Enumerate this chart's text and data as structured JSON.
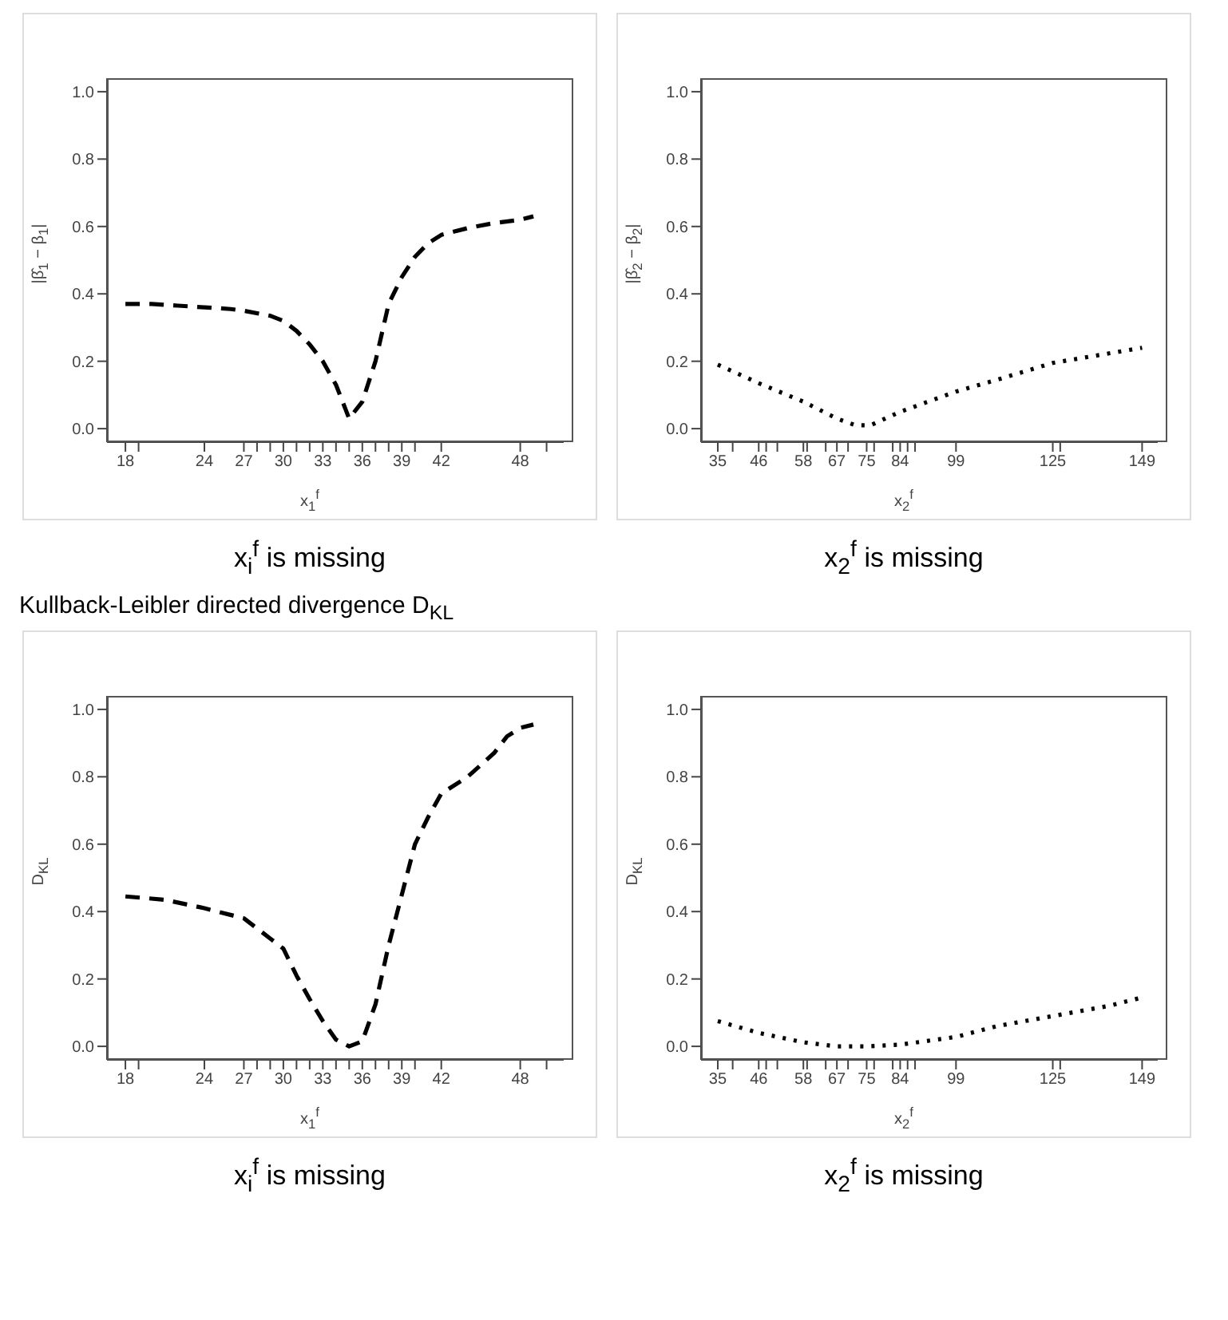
{
  "chart_data": [
    {
      "type": "line",
      "xlabel": "x$_{1}$$^{f}$",
      "ylabel": "|β̂$_{1}$ − β$_{1}$|",
      "annotations": [
        "x$_{i}$$^{f}$ is missing"
      ],
      "line_style": "dashed",
      "marker": "none",
      "series": [
        {
          "color": "#000000",
          "x": [
            18,
            20,
            22,
            24,
            26,
            27,
            29,
            30,
            31,
            32,
            33,
            34,
            35,
            36,
            37,
            38,
            39,
            40,
            41,
            42,
            44,
            46,
            48,
            49
          ],
          "values": [
            0.37,
            0.37,
            0.365,
            0.36,
            0.355,
            0.35,
            0.335,
            0.32,
            0.29,
            0.25,
            0.2,
            0.13,
            0.03,
            0.08,
            0.2,
            0.37,
            0.45,
            0.51,
            0.55,
            0.575,
            0.595,
            0.61,
            0.62,
            0.63
          ]
        }
      ],
      "xlim": [
        16.6,
        51.3
      ],
      "xticks": [
        18,
        {
          "value": 19,
          "label": null
        },
        24,
        27,
        {
          "value": 28,
          "label": null
        },
        {
          "value": 29,
          "label": null
        },
        30,
        {
          "value": 31,
          "label": null
        },
        {
          "value": 32,
          "label": null
        },
        33,
        {
          "value": 34,
          "label": null
        },
        {
          "value": 35,
          "label": null
        },
        36,
        {
          "value": 37,
          "label": null
        },
        {
          "value": 38,
          "label": null
        },
        39,
        {
          "value": 40,
          "label": null
        },
        42,
        48,
        {
          "value": 50,
          "label": null
        }
      ],
      "ylim": [
        -0.04,
        1.04
      ],
      "yticks": [
        {
          "value": 0,
          "label": "0.0"
        },
        {
          "value": 0.2,
          "label": "0.2"
        },
        {
          "value": 0.4,
          "label": "0.4"
        },
        {
          "value": 0.6,
          "label": "0.6"
        },
        {
          "value": 0.8,
          "label": "0.8"
        },
        {
          "value": 1,
          "label": "1.0"
        }
      ]
    },
    {
      "type": "line",
      "xlabel": "x$_{2}$$^{f}$",
      "ylabel": "|β̂$_{2}$ − β$_{2}$|",
      "annotations": [
        "x$_{2}$$^{f}$ is missing"
      ],
      "line_style": "dotted",
      "marker": "none",
      "series": [
        {
          "color": "#000000",
          "x": [
            35,
            46,
            58,
            67,
            72,
            76,
            84,
            99,
            110,
            125,
            149
          ],
          "values": [
            0.19,
            0.135,
            0.08,
            0.03,
            0.01,
            0.01,
            0.05,
            0.11,
            0.145,
            0.195,
            0.24
          ]
        }
      ],
      "xlim": [
        30.5,
        153.2
      ],
      "xticks": [
        35,
        {
          "value": 39,
          "label": null
        },
        46,
        {
          "value": 48,
          "label": null
        },
        {
          "value": 51,
          "label": null
        },
        58,
        {
          "value": 59,
          "label": null
        },
        {
          "value": 64,
          "label": null
        },
        67,
        {
          "value": 70,
          "label": null
        },
        75,
        {
          "value": 77,
          "label": null
        },
        {
          "value": 82,
          "label": null
        },
        84,
        {
          "value": 86,
          "label": null
        },
        {
          "value": 88,
          "label": null
        },
        99,
        125,
        {
          "value": 127,
          "label": null
        },
        149
      ],
      "ylim": [
        -0.04,
        1.04
      ],
      "yticks": [
        {
          "value": 0,
          "label": "0.0"
        },
        {
          "value": 0.2,
          "label": "0.2"
        },
        {
          "value": 0.4,
          "label": "0.4"
        },
        {
          "value": 0.6,
          "label": "0.6"
        },
        {
          "value": 0.8,
          "label": "0.8"
        },
        {
          "value": 1,
          "label": "1.0"
        }
      ]
    },
    {
      "type": "line",
      "title": "Kullback-Leibler directed divergence D$_{KL}$",
      "xlabel": "x$_{1}$$^{f}$",
      "ylabel": "D$_{KL}$",
      "annotations": [
        "x$_{i}$$^{f}$ is missing"
      ],
      "line_style": "dashed",
      "marker": "none",
      "series": [
        {
          "color": "#000000",
          "x": [
            18,
            21,
            24,
            27,
            29,
            30,
            31,
            32,
            33,
            34,
            35,
            36,
            37,
            38,
            39,
            40,
            41,
            42,
            44,
            46,
            47,
            48,
            49
          ],
          "values": [
            0.445,
            0.435,
            0.41,
            0.38,
            0.32,
            0.29,
            0.21,
            0.14,
            0.075,
            0.02,
            0,
            0.015,
            0.125,
            0.3,
            0.45,
            0.6,
            0.68,
            0.75,
            0.8,
            0.87,
            0.92,
            0.945,
            0.955
          ]
        }
      ],
      "xlim": [
        16.6,
        51.3
      ],
      "xticks": [
        18,
        {
          "value": 19,
          "label": null
        },
        24,
        27,
        {
          "value": 28,
          "label": null
        },
        {
          "value": 29,
          "label": null
        },
        30,
        {
          "value": 31,
          "label": null
        },
        {
          "value": 32,
          "label": null
        },
        33,
        {
          "value": 34,
          "label": null
        },
        {
          "value": 35,
          "label": null
        },
        36,
        {
          "value": 37,
          "label": null
        },
        {
          "value": 38,
          "label": null
        },
        39,
        {
          "value": 40,
          "label": null
        },
        42,
        48,
        {
          "value": 50,
          "label": null
        }
      ],
      "ylim": [
        -0.04,
        1.04
      ],
      "yticks": [
        {
          "value": 0,
          "label": "0.0"
        },
        {
          "value": 0.2,
          "label": "0.2"
        },
        {
          "value": 0.4,
          "label": "0.4"
        },
        {
          "value": 0.6,
          "label": "0.6"
        },
        {
          "value": 0.8,
          "label": "0.8"
        },
        {
          "value": 1,
          "label": "1.0"
        }
      ]
    },
    {
      "type": "line",
      "xlabel": "x$_{2}$$^{f}$",
      "ylabel": "D$_{KL}$",
      "annotations": [
        "x$_{2}$$^{f}$ is missing"
      ],
      "line_style": "dotted",
      "marker": "none",
      "series": [
        {
          "color": "#000000",
          "x": [
            35,
            46,
            58,
            67,
            75,
            84,
            99,
            110,
            125,
            140,
            149
          ],
          "values": [
            0.075,
            0.04,
            0.012,
            0,
            0,
            0.005,
            0.028,
            0.06,
            0.09,
            0.12,
            0.145
          ]
        }
      ],
      "xlim": [
        30.5,
        153.2
      ],
      "xticks": [
        35,
        {
          "value": 39,
          "label": null
        },
        46,
        {
          "value": 48,
          "label": null
        },
        {
          "value": 51,
          "label": null
        },
        58,
        {
          "value": 59,
          "label": null
        },
        {
          "value": 64,
          "label": null
        },
        67,
        {
          "value": 70,
          "label": null
        },
        75,
        {
          "value": 77,
          "label": null
        },
        {
          "value": 82,
          "label": null
        },
        84,
        {
          "value": 86,
          "label": null
        },
        {
          "value": 88,
          "label": null
        },
        99,
        125,
        {
          "value": 127,
          "label": null
        },
        149
      ],
      "ylim": [
        -0.04,
        1.04
      ],
      "yticks": [
        {
          "value": 0,
          "label": "0.0"
        },
        {
          "value": 0.2,
          "label": "0.2"
        },
        {
          "value": 0.4,
          "label": "0.4"
        },
        {
          "value": 0.6,
          "label": "0.6"
        },
        {
          "value": 0.8,
          "label": "0.8"
        },
        {
          "value": 1,
          "label": "1.0"
        }
      ]
    }
  ]
}
